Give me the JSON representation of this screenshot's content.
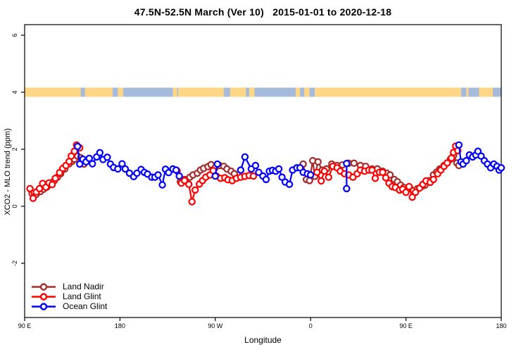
{
  "title": "47.5N-52.5N March (Ver 10)   2015-01-01 to 2020-12-18",
  "legend": [
    {
      "label": "Land Nadir",
      "color": "#A52A2A"
    },
    {
      "label": "Land Glint",
      "color": "#FF0000"
    },
    {
      "label": "Ocean Glint",
      "color": "#0000FF"
    }
  ],
  "chart_data": {
    "type": "line",
    "title": "47.5N-52.5N March (Ver 10)  2015-01-01 to 2020-12-18",
    "xlabel": "Longitude",
    "ylabel": "XCO2 - MLO trend (ppm)",
    "x_axis_note": "longitude axis wraps eastward starting at 90E; deg = degrees east of 90E",
    "x_range_deg": [
      0,
      450
    ],
    "ylim": [
      -3.95,
      6.35
    ],
    "grid": false,
    "legend_position": "bottom-left",
    "x_ticks": [
      {
        "deg": 0,
        "label": "90 E"
      },
      {
        "deg": 90,
        "label": "180"
      },
      {
        "deg": 180,
        "label": "90 W"
      },
      {
        "deg": 270,
        "label": "0"
      },
      {
        "deg": 360,
        "label": "90 E"
      },
      {
        "deg": 450,
        "label": "180"
      }
    ],
    "y_ticks": [
      {
        "value": 6,
        "label": "6"
      },
      {
        "value": 4,
        "label": "4"
      },
      {
        "value": 2,
        "label": "2"
      },
      {
        "value": 0,
        "label": "0"
      },
      {
        "value": -2,
        "label": "-2"
      }
    ],
    "surface_band": {
      "value": 4,
      "land_color": "#FFD685",
      "ocean_color": "#A6BADC",
      "segments": [
        {
          "from": 0,
          "to": 83,
          "type": "land"
        },
        {
          "from": 83,
          "to": 145,
          "type": "ocean"
        },
        {
          "from": 145,
          "to": 209,
          "type": "land"
        },
        {
          "from": 209,
          "to": 274,
          "type": "ocean"
        },
        {
          "from": 274,
          "to": 412,
          "type": "land"
        },
        {
          "from": 412,
          "to": 450,
          "type": "ocean"
        }
      ],
      "specks": [
        {
          "from": 53,
          "to": 57,
          "type": "ocean"
        },
        {
          "from": 88,
          "to": 93,
          "type": "land"
        },
        {
          "from": 140,
          "to": 144,
          "type": "land"
        },
        {
          "from": 188,
          "to": 194,
          "type": "ocean"
        },
        {
          "from": 212,
          "to": 217,
          "type": "land"
        },
        {
          "from": 256,
          "to": 260,
          "type": "land"
        },
        {
          "from": 264,
          "to": 269,
          "type": "land"
        },
        {
          "from": 417,
          "to": 419,
          "type": "land"
        },
        {
          "from": 429,
          "to": 442,
          "type": "land"
        }
      ]
    },
    "series": [
      {
        "name": "Land Nadir",
        "color": "#A52A2A",
        "segments": [
          [
            [
              7,
              0.45
            ],
            [
              11,
              0.42
            ],
            [
              15,
              0.52
            ],
            [
              18,
              0.6
            ],
            [
              21,
              0.67
            ],
            [
              25,
              0.78
            ],
            [
              28,
              0.9
            ],
            [
              31,
              1.02
            ],
            [
              34,
              1.14
            ],
            [
              38,
              1.31
            ],
            [
              42,
              1.49
            ],
            [
              45,
              1.58
            ],
            [
              47,
              1.65
            ],
            [
              50,
              1.76
            ],
            [
              53,
              1.7
            ],
            [
              56,
              1.48
            ]
          ],
          [
            [
              147,
              0.86
            ],
            [
              151,
              0.94
            ],
            [
              156,
              1.02
            ],
            [
              159,
              1.1
            ],
            [
              163,
              1.16
            ],
            [
              166,
              1.27
            ],
            [
              169,
              1.33
            ],
            [
              173,
              1.39
            ],
            [
              176,
              1.46
            ],
            [
              180,
              1.36
            ],
            [
              184,
              1.43
            ],
            [
              188,
              1.4
            ],
            [
              191,
              1.31
            ],
            [
              195,
              1.23
            ],
            [
              198,
              1.14
            ]
          ],
          [
            [
              263,
              1.48
            ],
            [
              266,
              0.94
            ],
            [
              269,
              0.9
            ],
            [
              272,
              1.6
            ],
            [
              274,
              1.05
            ],
            [
              277,
              1.56
            ],
            [
              281,
              1.27
            ],
            [
              285,
              1.31
            ],
            [
              290,
              1.48
            ],
            [
              295,
              1.43
            ],
            [
              300,
              1.45
            ],
            [
              306,
              1.51
            ],
            [
              311,
              1.51
            ],
            [
              317,
              1.43
            ],
            [
              322,
              1.4
            ],
            [
              328,
              1.31
            ],
            [
              333,
              1.31
            ],
            [
              338,
              1.23
            ],
            [
              342,
              1.16
            ],
            [
              345,
              1.1
            ],
            [
              349,
              0.94
            ],
            [
              352,
              0.86
            ],
            [
              355,
              0.74
            ],
            [
              358,
              0.66
            ],
            [
              361,
              0.57
            ],
            [
              364,
              0.62
            ],
            [
              367,
              0.55
            ],
            [
              371,
              0.62
            ],
            [
              375,
              0.7
            ],
            [
              378,
              0.74
            ],
            [
              382,
              0.9
            ],
            [
              386,
              1.1
            ],
            [
              389,
              1.2
            ],
            [
              392,
              1.31
            ],
            [
              396,
              1.43
            ],
            [
              399,
              1.52
            ],
            [
              402,
              1.65
            ],
            [
              405,
              1.78
            ],
            [
              408,
              1.52
            ],
            [
              410,
              1.43
            ]
          ]
        ]
      },
      {
        "name": "Land Glint",
        "color": "#FF0000",
        "segments": [
          [
            [
              5,
              0.62
            ],
            [
              8,
              0.28
            ],
            [
              11,
              0.5
            ],
            [
              14,
              0.62
            ],
            [
              17,
              0.8
            ],
            [
              20,
              0.67
            ],
            [
              23,
              0.82
            ],
            [
              26,
              0.76
            ],
            [
              29,
              0.98
            ],
            [
              33,
              1.18
            ],
            [
              36,
              1.33
            ],
            [
              39,
              1.43
            ],
            [
              42,
              1.57
            ],
            [
              44,
              1.76
            ],
            [
              47,
              1.93
            ],
            [
              49,
              2.15
            ],
            [
              52,
              2.05
            ]
          ],
          [
            [
              144,
              1.24
            ],
            [
              148,
              0.81
            ],
            [
              151,
              0.9
            ],
            [
              155,
              0.77
            ],
            [
              158,
              0.16
            ],
            [
              161,
              0.57
            ],
            [
              165,
              0.78
            ],
            [
              168,
              0.9
            ],
            [
              171,
              1.02
            ],
            [
              175,
              1.1
            ],
            [
              178,
              1.25
            ],
            [
              181,
              1.06
            ],
            [
              185,
              0.98
            ],
            [
              189,
              1.0
            ],
            [
              192,
              0.93
            ],
            [
              196,
              0.9
            ],
            [
              200,
              0.98
            ],
            [
              204,
              1.02
            ],
            [
              208,
              1.05
            ],
            [
              212,
              1.08
            ],
            [
              216,
              1.06
            ]
          ],
          [
            [
              276,
              1.19
            ],
            [
              280,
              0.89
            ],
            [
              283,
              1.23
            ],
            [
              287,
              1.02
            ],
            [
              291,
              1.4
            ],
            [
              295,
              1.35
            ],
            [
              298,
              1.23
            ],
            [
              302,
              1.14
            ],
            [
              306,
              1.1
            ],
            [
              310,
              1.02
            ],
            [
              314,
              1.14
            ],
            [
              317,
              1.27
            ],
            [
              321,
              1.23
            ],
            [
              325,
              1.27
            ],
            [
              328,
              1.27
            ],
            [
              331,
              0.98
            ],
            [
              335,
              1.19
            ],
            [
              338,
              1.19
            ],
            [
              341,
              1.0
            ],
            [
              344,
              0.81
            ],
            [
              347,
              0.69
            ],
            [
              350,
              0.66
            ],
            [
              354,
              0.57
            ],
            [
              357,
              0.6
            ],
            [
              360,
              0.49
            ],
            [
              363,
              0.69
            ],
            [
              366,
              0.32
            ],
            [
              369,
              0.49
            ],
            [
              373,
              0.64
            ],
            [
              376,
              0.77
            ],
            [
              379,
              0.89
            ],
            [
              383,
              0.84
            ],
            [
              386,
              0.94
            ],
            [
              390,
              1.14
            ],
            [
              393,
              1.27
            ],
            [
              396,
              1.4
            ],
            [
              399,
              1.52
            ],
            [
              403,
              1.69
            ],
            [
              405,
              1.89
            ],
            [
              407,
              2.11
            ],
            [
              409,
              1.95
            ]
          ]
        ]
      },
      {
        "name": "Ocean Glint",
        "color": "#0000FF",
        "segments": [
          [
            [
              50,
              2.1
            ],
            [
              52,
              1.48
            ],
            [
              55,
              1.65
            ],
            [
              58,
              1.56
            ],
            [
              61,
              1.68
            ],
            [
              64,
              1.49
            ],
            [
              68,
              1.73
            ],
            [
              71,
              1.88
            ],
            [
              74,
              1.64
            ],
            [
              78,
              1.72
            ],
            [
              81,
              1.48
            ],
            [
              84,
              1.36
            ],
            [
              88,
              1.31
            ],
            [
              92,
              1.49
            ],
            [
              95,
              1.31
            ],
            [
              99,
              1.16
            ],
            [
              103,
              1.04
            ],
            [
              106,
              1.16
            ],
            [
              110,
              1.29
            ],
            [
              113,
              1.19
            ],
            [
              116,
              1.13
            ],
            [
              120,
              1.02
            ],
            [
              123,
              1.02
            ],
            [
              126,
              1.1
            ],
            [
              130,
              0.75
            ],
            [
              133,
              1.3
            ],
            [
              136,
              1.18
            ],
            [
              140,
              1.31
            ],
            [
              143,
              1.27
            ],
            [
              146,
              1.06
            ]
          ],
          [
            [
              180,
              1.06
            ],
            [
              182,
              1.48
            ]
          ],
          [
            [
              204,
              1.27
            ],
            [
              208,
              1.73
            ],
            [
              214,
              1.31
            ],
            [
              218,
              1.43
            ],
            [
              221,
              1.19
            ],
            [
              225,
              1.06
            ],
            [
              228,
              0.94
            ],
            [
              231,
              1.23
            ],
            [
              234,
              1.26
            ],
            [
              237,
              1.23
            ],
            [
              240,
              1.31
            ],
            [
              243,
              1.02
            ],
            [
              246,
              0.85
            ],
            [
              250,
              0.77
            ],
            [
              253,
              1.27
            ],
            [
              257,
              1.35
            ],
            [
              260,
              1.35
            ],
            [
              263,
              1.19
            ],
            [
              267,
              1.14
            ],
            [
              270,
              1.1
            ]
          ],
          [
            [
              304,
              1.5
            ],
            [
              304,
              0.62
            ]
          ],
          [
            [
              410,
              2.15
            ],
            [
              412,
              1.56
            ],
            [
              414,
              1.48
            ],
            [
              417,
              1.6
            ],
            [
              420,
              1.8
            ],
            [
              423,
              1.73
            ],
            [
              426,
              1.8
            ],
            [
              428,
              1.93
            ],
            [
              431,
              1.76
            ],
            [
              434,
              1.6
            ],
            [
              437,
              1.48
            ],
            [
              440,
              1.35
            ],
            [
              443,
              1.48
            ],
            [
              446,
              1.4
            ],
            [
              448,
              1.27
            ],
            [
              450,
              1.35
            ]
          ]
        ]
      }
    ]
  }
}
